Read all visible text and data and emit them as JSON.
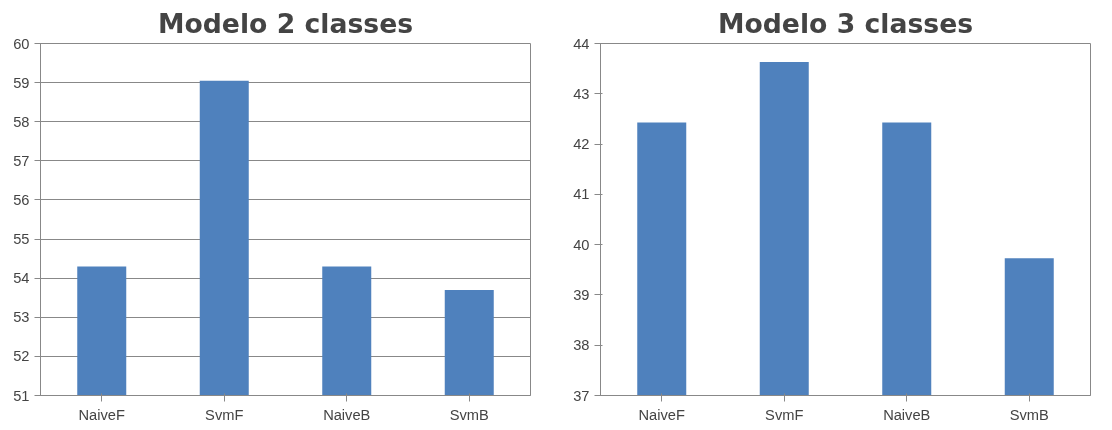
{
  "chart_data": [
    {
      "type": "bar",
      "title": "Modelo 2 classes",
      "categories": [
        "NaiveF",
        "SvmF",
        "NaiveB",
        "SvmB"
      ],
      "values": [
        54.3,
        59.05,
        54.3,
        53.7
      ],
      "color": "#4f81bd",
      "ylim": [
        51,
        60
      ],
      "yticks": [
        51,
        52,
        53,
        54,
        55,
        56,
        57,
        58,
        59,
        60
      ],
      "grid": "y"
    },
    {
      "type": "bar",
      "title": "Modelo 3 classes",
      "categories": [
        "NaiveF",
        "SvmF",
        "NaiveB",
        "SvmB"
      ],
      "values": [
        42.43,
        43.63,
        42.43,
        39.73
      ],
      "color": "#4f81bd",
      "ylim": [
        37,
        44
      ],
      "yticks": [
        37,
        38,
        39,
        40,
        41,
        42,
        43,
        44
      ]
    }
  ]
}
